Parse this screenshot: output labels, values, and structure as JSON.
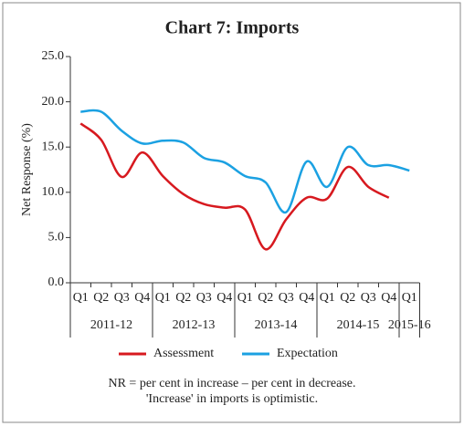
{
  "chart_data": {
    "type": "line",
    "title": "Chart 7: Imports",
    "y_label": "Net Response (%)",
    "categories": [
      "Q1",
      "Q2",
      "Q3",
      "Q4",
      "Q1",
      "Q2",
      "Q3",
      "Q4",
      "Q1",
      "Q2",
      "Q3",
      "Q4",
      "Q1",
      "Q2",
      "Q3",
      "Q4",
      "Q1"
    ],
    "groups": [
      "2011-12",
      "2012-13",
      "2013-14",
      "2014-15",
      "2015-16"
    ],
    "series": [
      {
        "name": "Assessment",
        "color": "#d7191f",
        "values": [
          17.6,
          15.8,
          11.7,
          14.4,
          11.8,
          9.8,
          8.7,
          8.3,
          8.1,
          3.7,
          7.0,
          9.4,
          9.3,
          12.8,
          10.6,
          9.4,
          null
        ]
      },
      {
        "name": "Expectation",
        "color": "#1ba1e2",
        "values": [
          18.9,
          18.9,
          16.8,
          15.4,
          15.7,
          15.5,
          13.8,
          13.3,
          11.8,
          11.1,
          7.8,
          13.4,
          10.6,
          15.0,
          13.0,
          13.0,
          12.4
        ]
      }
    ],
    "ylim": [
      0,
      25
    ],
    "yticks": [
      {
        "value": 0,
        "label": "0.0"
      },
      {
        "value": 5,
        "label": "5.0"
      },
      {
        "value": 10,
        "label": "10.0"
      },
      {
        "value": 15,
        "label": "15.0"
      },
      {
        "value": 20,
        "label": "20.0"
      },
      {
        "value": 25,
        "label": "25.0"
      }
    ],
    "notes": [
      "NR = per cent in increase – per cent in decrease.",
      "'Increase' in imports is optimistic."
    ]
  }
}
